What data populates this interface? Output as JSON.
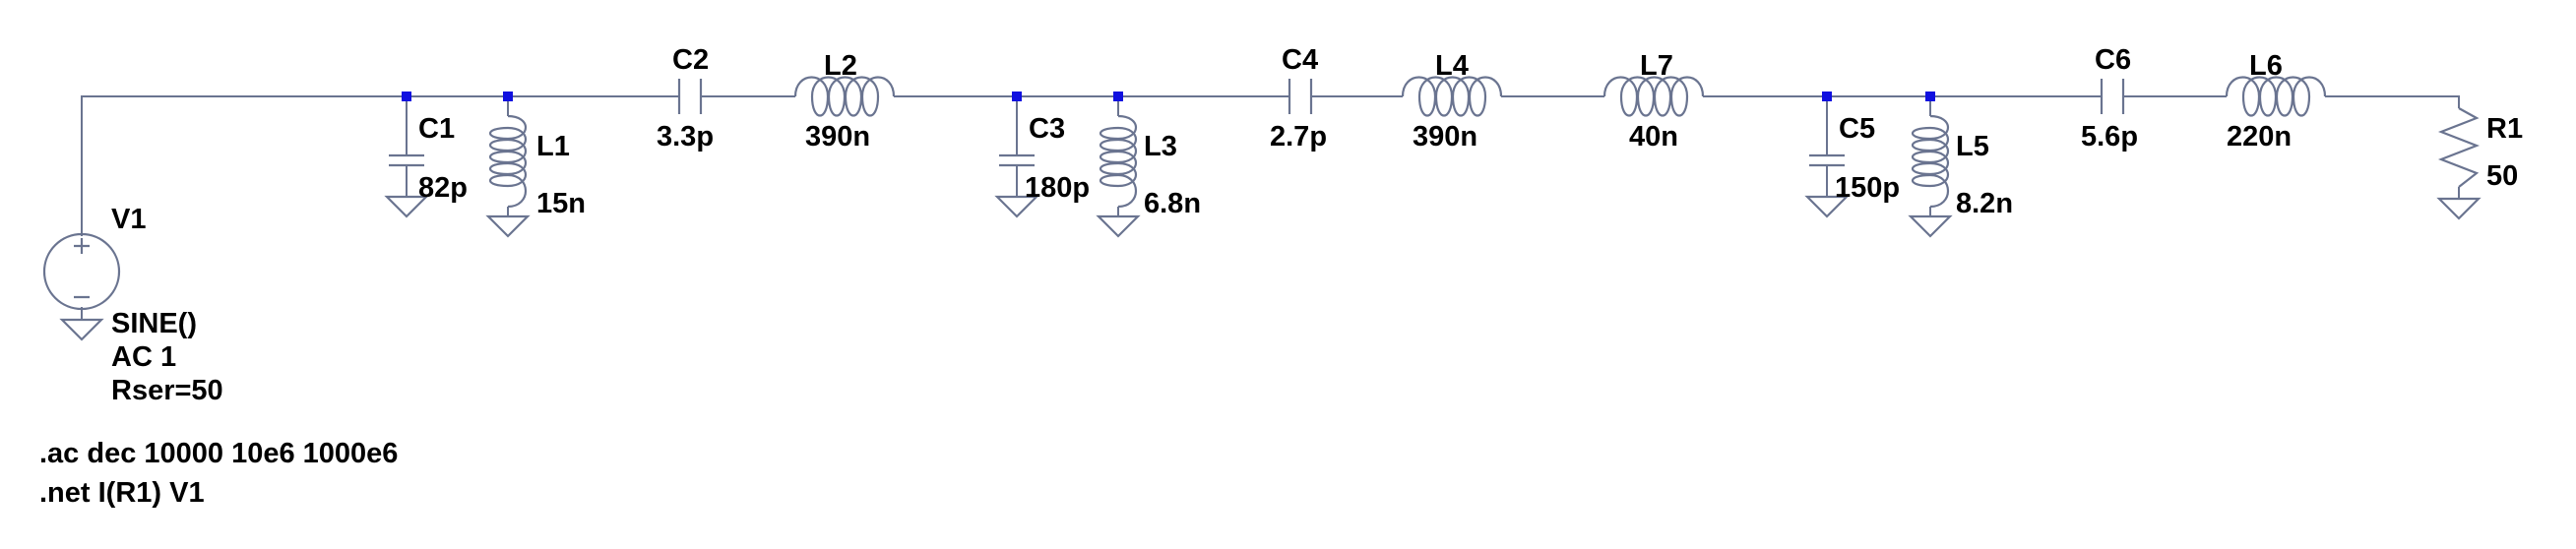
{
  "components": [
    {
      "ref": "C1",
      "value": "82p"
    },
    {
      "ref": "L1",
      "value": "15n"
    },
    {
      "ref": "C2",
      "value": "3.3p"
    },
    {
      "ref": "L2",
      "value": "390n"
    },
    {
      "ref": "C3",
      "value": "180p"
    },
    {
      "ref": "L3",
      "value": "6.8n"
    },
    {
      "ref": "C4",
      "value": "2.7p"
    },
    {
      "ref": "L4",
      "value": "390n"
    },
    {
      "ref": "L7",
      "value": "40n"
    },
    {
      "ref": "C5",
      "value": "150p"
    },
    {
      "ref": "L5",
      "value": "8.2n"
    },
    {
      "ref": "C6",
      "value": "5.6p"
    },
    {
      "ref": "L6",
      "value": "220n"
    },
    {
      "ref": "R1",
      "value": "50"
    }
  ],
  "source": {
    "ref": "V1",
    "lines": [
      "SINE()",
      "AC 1",
      "Rser=50"
    ]
  },
  "directives": [
    ".ac dec 10000 10e6 1000e6",
    ".net I(R1) V1"
  ]
}
